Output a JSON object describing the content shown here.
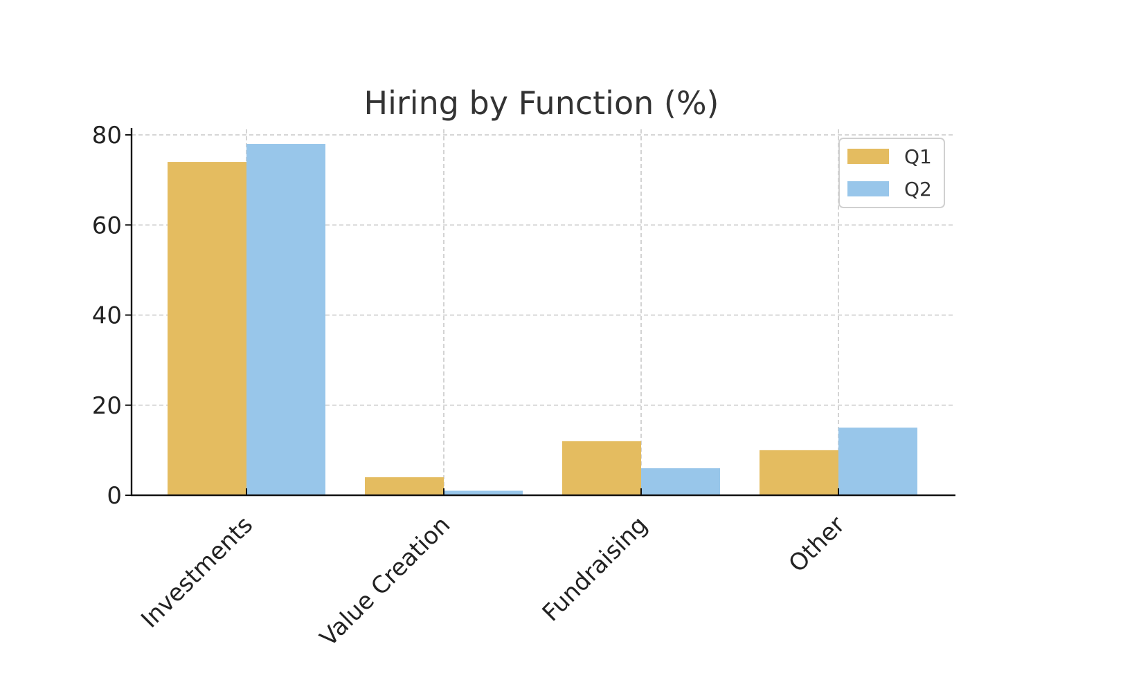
{
  "chart_data": {
    "type": "bar",
    "title": "Hiring by Function (%)",
    "xlabel": "",
    "ylabel": "",
    "categories": [
      "Investments",
      "Value Creation",
      "Fundraising",
      "Other"
    ],
    "series": [
      {
        "name": "Q1",
        "values": [
          74,
          4,
          12,
          10
        ],
        "color": "#E4BC60"
      },
      {
        "name": "Q2",
        "values": [
          78,
          1,
          6,
          15
        ],
        "color": "#98C6EA"
      }
    ],
    "ylim": [
      0,
      80
    ],
    "yticks": [
      0,
      20,
      40,
      60,
      80
    ],
    "grid": true,
    "legend_position": "top-right"
  }
}
